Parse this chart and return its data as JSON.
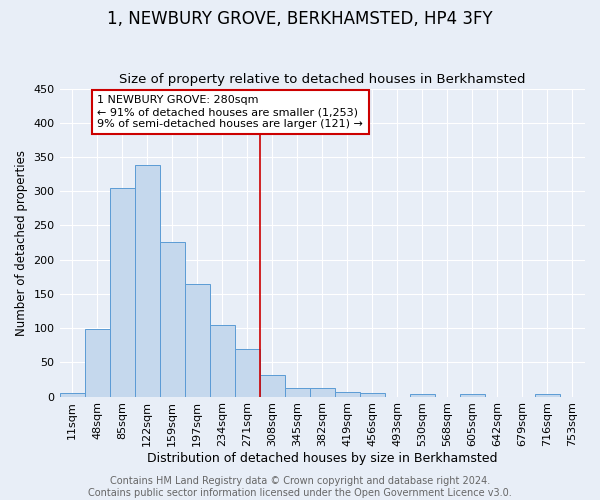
{
  "title": "1, NEWBURY GROVE, BERKHAMSTED, HP4 3FY",
  "subtitle": "Size of property relative to detached houses in Berkhamsted",
  "xlabel": "Distribution of detached houses by size in Berkhamsted",
  "ylabel": "Number of detached properties",
  "categories": [
    "11sqm",
    "48sqm",
    "85sqm",
    "122sqm",
    "159sqm",
    "197sqm",
    "234sqm",
    "271sqm",
    "308sqm",
    "345sqm",
    "382sqm",
    "419sqm",
    "456sqm",
    "493sqm",
    "530sqm",
    "568sqm",
    "605sqm",
    "642sqm",
    "679sqm",
    "716sqm",
    "753sqm"
  ],
  "values": [
    5,
    99,
    305,
    338,
    226,
    165,
    105,
    70,
    32,
    13,
    13,
    7,
    5,
    0,
    4,
    0,
    4,
    0,
    0,
    4,
    0
  ],
  "bar_color": "#c5d8ed",
  "bar_edge_color": "#5b9bd5",
  "background_color": "#e8eef7",
  "grid_color": "#ffffff",
  "marker_line_color": "#cc0000",
  "marker_line_idx": 7,
  "annotation_box_lines": [
    "1 NEWBURY GROVE: 280sqm",
    "← 91% of detached houses are smaller (1,253)",
    "9% of semi-detached houses are larger (121) →"
  ],
  "annotation_box_color": "#ffffff",
  "annotation_box_edge_color": "#cc0000",
  "footer_text": "Contains HM Land Registry data © Crown copyright and database right 2024.\nContains public sector information licensed under the Open Government Licence v3.0.",
  "ylim": [
    0,
    450
  ],
  "yticks": [
    0,
    50,
    100,
    150,
    200,
    250,
    300,
    350,
    400,
    450
  ],
  "title_fontsize": 12,
  "subtitle_fontsize": 9.5,
  "xlabel_fontsize": 9,
  "ylabel_fontsize": 8.5,
  "tick_fontsize": 8,
  "annotation_fontsize": 8,
  "footer_fontsize": 7
}
